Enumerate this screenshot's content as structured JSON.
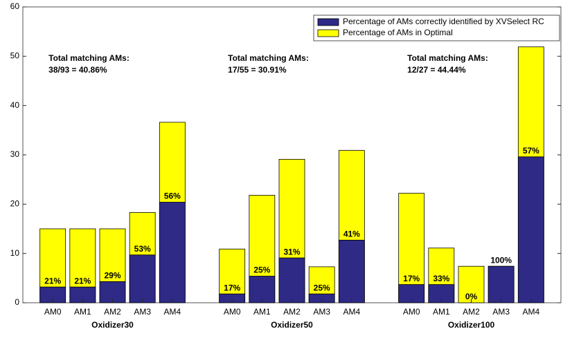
{
  "chart_data": {
    "type": "bar",
    "mode": "overlay",
    "categories": [
      "AM0",
      "AM1",
      "AM2",
      "AM3",
      "AM4",
      null,
      "AM0",
      "AM1",
      "AM2",
      "AM3",
      "AM4",
      null,
      "AM0",
      "AM1",
      "AM2",
      "AM3",
      "AM4"
    ],
    "groups": [
      {
        "name": "Oxidizer30",
        "from": 0,
        "to": 4
      },
      {
        "name": "Oxidizer50",
        "from": 6,
        "to": 10
      },
      {
        "name": "Oxidizer100",
        "from": 12,
        "to": 16
      }
    ],
    "series": [
      {
        "name": "Percentage of AMs in Optimal",
        "color": "#ffff00",
        "values": [
          15,
          15,
          15,
          18.3,
          36.6,
          0,
          10.9,
          21.8,
          29.1,
          7.3,
          30.9,
          0,
          22.2,
          11.1,
          7.4,
          7.4,
          51.9
        ]
      },
      {
        "name": "Percentage of AMs correctly identified by XVSelect RC",
        "color": "#2e2a86",
        "values": [
          3.2,
          3.2,
          4.3,
          9.7,
          20.4,
          0,
          1.8,
          5.4,
          9.1,
          1.8,
          12.7,
          0,
          3.7,
          3.7,
          0,
          7.4,
          29.6
        ]
      }
    ],
    "bar_labels": [
      "21%",
      "21%",
      "29%",
      "53%",
      "56%",
      null,
      "17%",
      "25%",
      "31%",
      "25%",
      "41%",
      null,
      "17%",
      "33%",
      "0%",
      "100%",
      "57%"
    ],
    "annotations": [
      {
        "lines": [
          "Total matching AMs:",
          "38/93 = 40.86%"
        ],
        "at": 0
      },
      {
        "lines": [
          "Total matching AMs:",
          "17/55 = 30.91%"
        ],
        "at": 6
      },
      {
        "lines": [
          "Total matching AMs:",
          "12/27 = 44.44%"
        ],
        "at": 12
      }
    ],
    "ylim": [
      0,
      60
    ],
    "yticks": [
      0,
      10,
      20,
      30,
      40,
      50,
      60
    ],
    "legend": "top-right"
  }
}
